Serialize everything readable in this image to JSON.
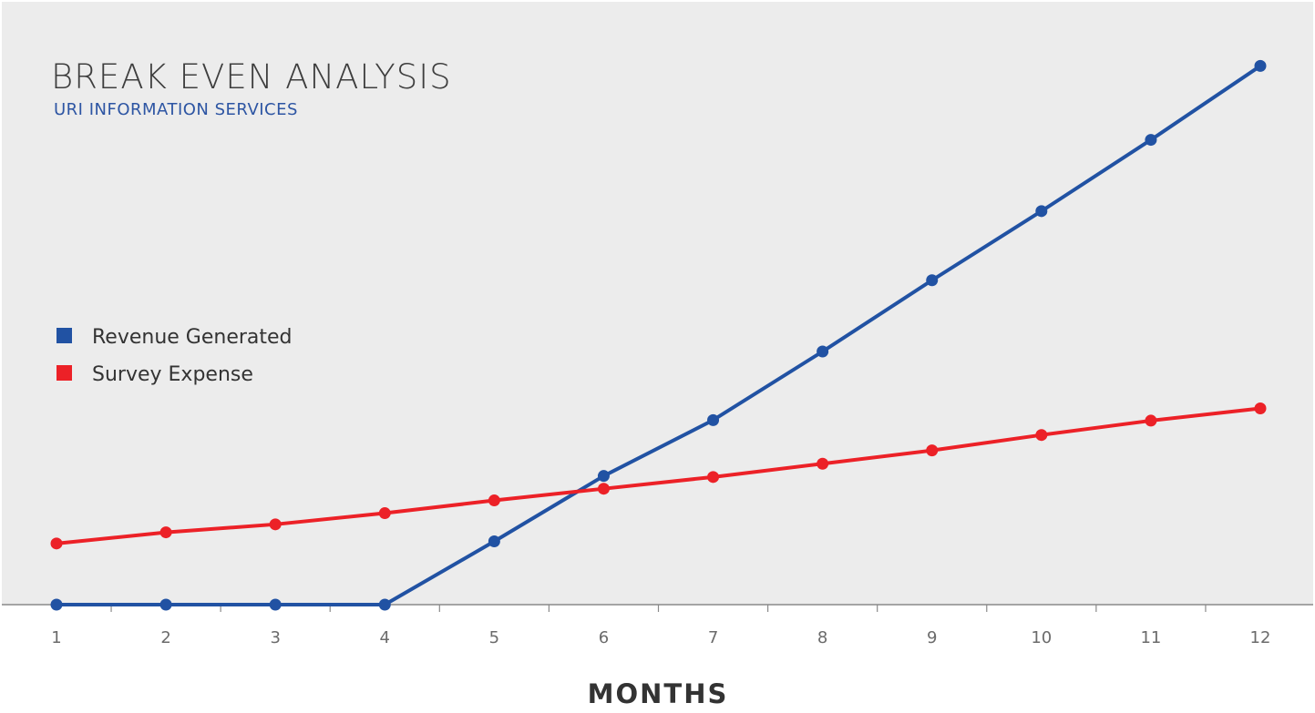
{
  "chart_data": {
    "type": "line",
    "title": "BREAK EVEN ANALYSIS",
    "subtitle": "URI INFORMATION SERVICES",
    "xlabel": "MONTHS",
    "ylabel": "",
    "x": [
      1,
      2,
      3,
      4,
      5,
      6,
      7,
      8,
      9,
      10,
      11,
      12
    ],
    "x_tick_labels": [
      "1",
      "2",
      "3",
      "4",
      "5",
      "6",
      "7",
      "8",
      "9",
      "10",
      "11",
      "12"
    ],
    "ylim": [
      0,
      100
    ],
    "grid": false,
    "legend_position": "left",
    "series": [
      {
        "name": "Revenue Generated",
        "color": "#2152a3",
        "values": [
          0,
          0,
          0,
          0,
          11.9,
          24.2,
          34.7,
          47.6,
          61.0,
          74.0,
          87.4,
          101.3
        ]
      },
      {
        "name": "Survey Expense",
        "color": "#ec2127",
        "values": [
          11.5,
          13.6,
          15.1,
          17.2,
          19.6,
          21.8,
          24.0,
          26.5,
          29.0,
          31.9,
          34.6,
          36.9
        ]
      }
    ]
  }
}
